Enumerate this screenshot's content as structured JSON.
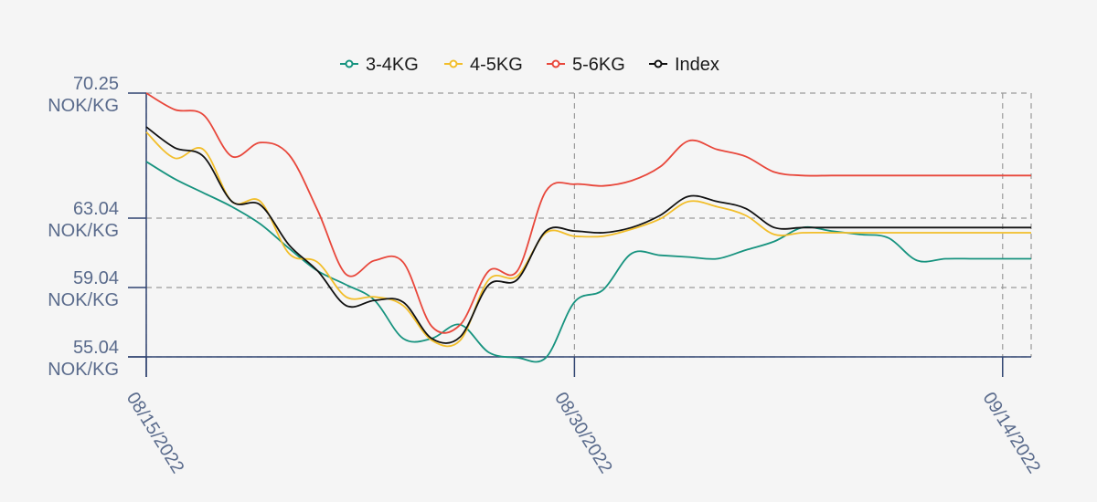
{
  "chart_data": {
    "type": "line",
    "x": [
      "08/15/2022",
      "08/16/2022",
      "08/17/2022",
      "08/18/2022",
      "08/19/2022",
      "08/20/2022",
      "08/21/2022",
      "08/22/2022",
      "08/23/2022",
      "08/24/2022",
      "08/25/2022",
      "08/26/2022",
      "08/27/2022",
      "08/28/2022",
      "08/29/2022",
      "08/30/2022",
      "08/31/2022",
      "09/01/2022",
      "09/02/2022",
      "09/03/2022",
      "09/04/2022",
      "09/05/2022",
      "09/06/2022",
      "09/07/2022",
      "09/08/2022",
      "09/09/2022",
      "09/10/2022",
      "09/11/2022",
      "09/12/2022",
      "09/13/2022",
      "09/14/2022",
      "09/15/2022"
    ],
    "x_tick_labels": [
      "08/15/2022",
      "08/30/2022",
      "09/14/2022"
    ],
    "y_ticks": [
      {
        "value": 70.25,
        "label": "70.25",
        "unit": "NOK/KG"
      },
      {
        "value": 63.04,
        "label": "63.04",
        "unit": "NOK/KG"
      },
      {
        "value": 59.04,
        "label": "59.04",
        "unit": "NOK/KG"
      },
      {
        "value": 55.04,
        "label": "55.04",
        "unit": "NOK/KG"
      }
    ],
    "ylim": [
      55.04,
      70.25
    ],
    "grid": true,
    "legend_position": "top-center",
    "series": [
      {
        "name": "3-4KG",
        "color": "#17937f",
        "values": [
          66.3,
          65.3,
          64.5,
          63.7,
          62.7,
          61.3,
          60.0,
          59.2,
          58.3,
          56.1,
          56.1,
          56.9,
          55.3,
          55.0,
          55.0,
          58.2,
          58.9,
          61.0,
          60.9,
          60.8,
          60.7,
          61.2,
          61.7,
          62.5,
          62.3,
          62.1,
          61.9,
          60.6,
          60.7,
          60.7,
          60.7,
          60.7
        ]
      },
      {
        "name": "4-5KG",
        "color": "#f2be2a",
        "values": [
          68.0,
          66.5,
          67.0,
          64.0,
          64.0,
          61.0,
          60.5,
          58.5,
          58.5,
          58.0,
          56.0,
          56.0,
          59.5,
          59.7,
          62.2,
          62.0,
          62.0,
          62.4,
          63.0,
          64.0,
          63.7,
          63.2,
          62.1,
          62.2,
          62.2,
          62.2,
          62.2,
          62.2,
          62.2,
          62.2,
          62.2,
          62.2
        ]
      },
      {
        "name": "5-6KG",
        "color": "#e8473b",
        "values": [
          70.25,
          69.3,
          69.0,
          66.6,
          67.4,
          66.7,
          63.5,
          59.8,
          60.6,
          60.5,
          56.8,
          56.9,
          60.0,
          60.0,
          64.6,
          65.0,
          64.9,
          65.2,
          66.0,
          67.5,
          67.0,
          66.6,
          65.7,
          65.5,
          65.5,
          65.5,
          65.5,
          65.5,
          65.5,
          65.5,
          65.5,
          65.5
        ]
      },
      {
        "name": "Index",
        "color": "#111111",
        "values": [
          68.3,
          67.1,
          66.6,
          64.0,
          63.8,
          61.5,
          60.0,
          58.0,
          58.3,
          58.2,
          56.1,
          56.2,
          59.2,
          59.5,
          62.3,
          62.3,
          62.2,
          62.5,
          63.2,
          64.3,
          64.0,
          63.6,
          62.5,
          62.5,
          62.5,
          62.5,
          62.5,
          62.5,
          62.5,
          62.5,
          62.5,
          62.5
        ]
      }
    ]
  }
}
